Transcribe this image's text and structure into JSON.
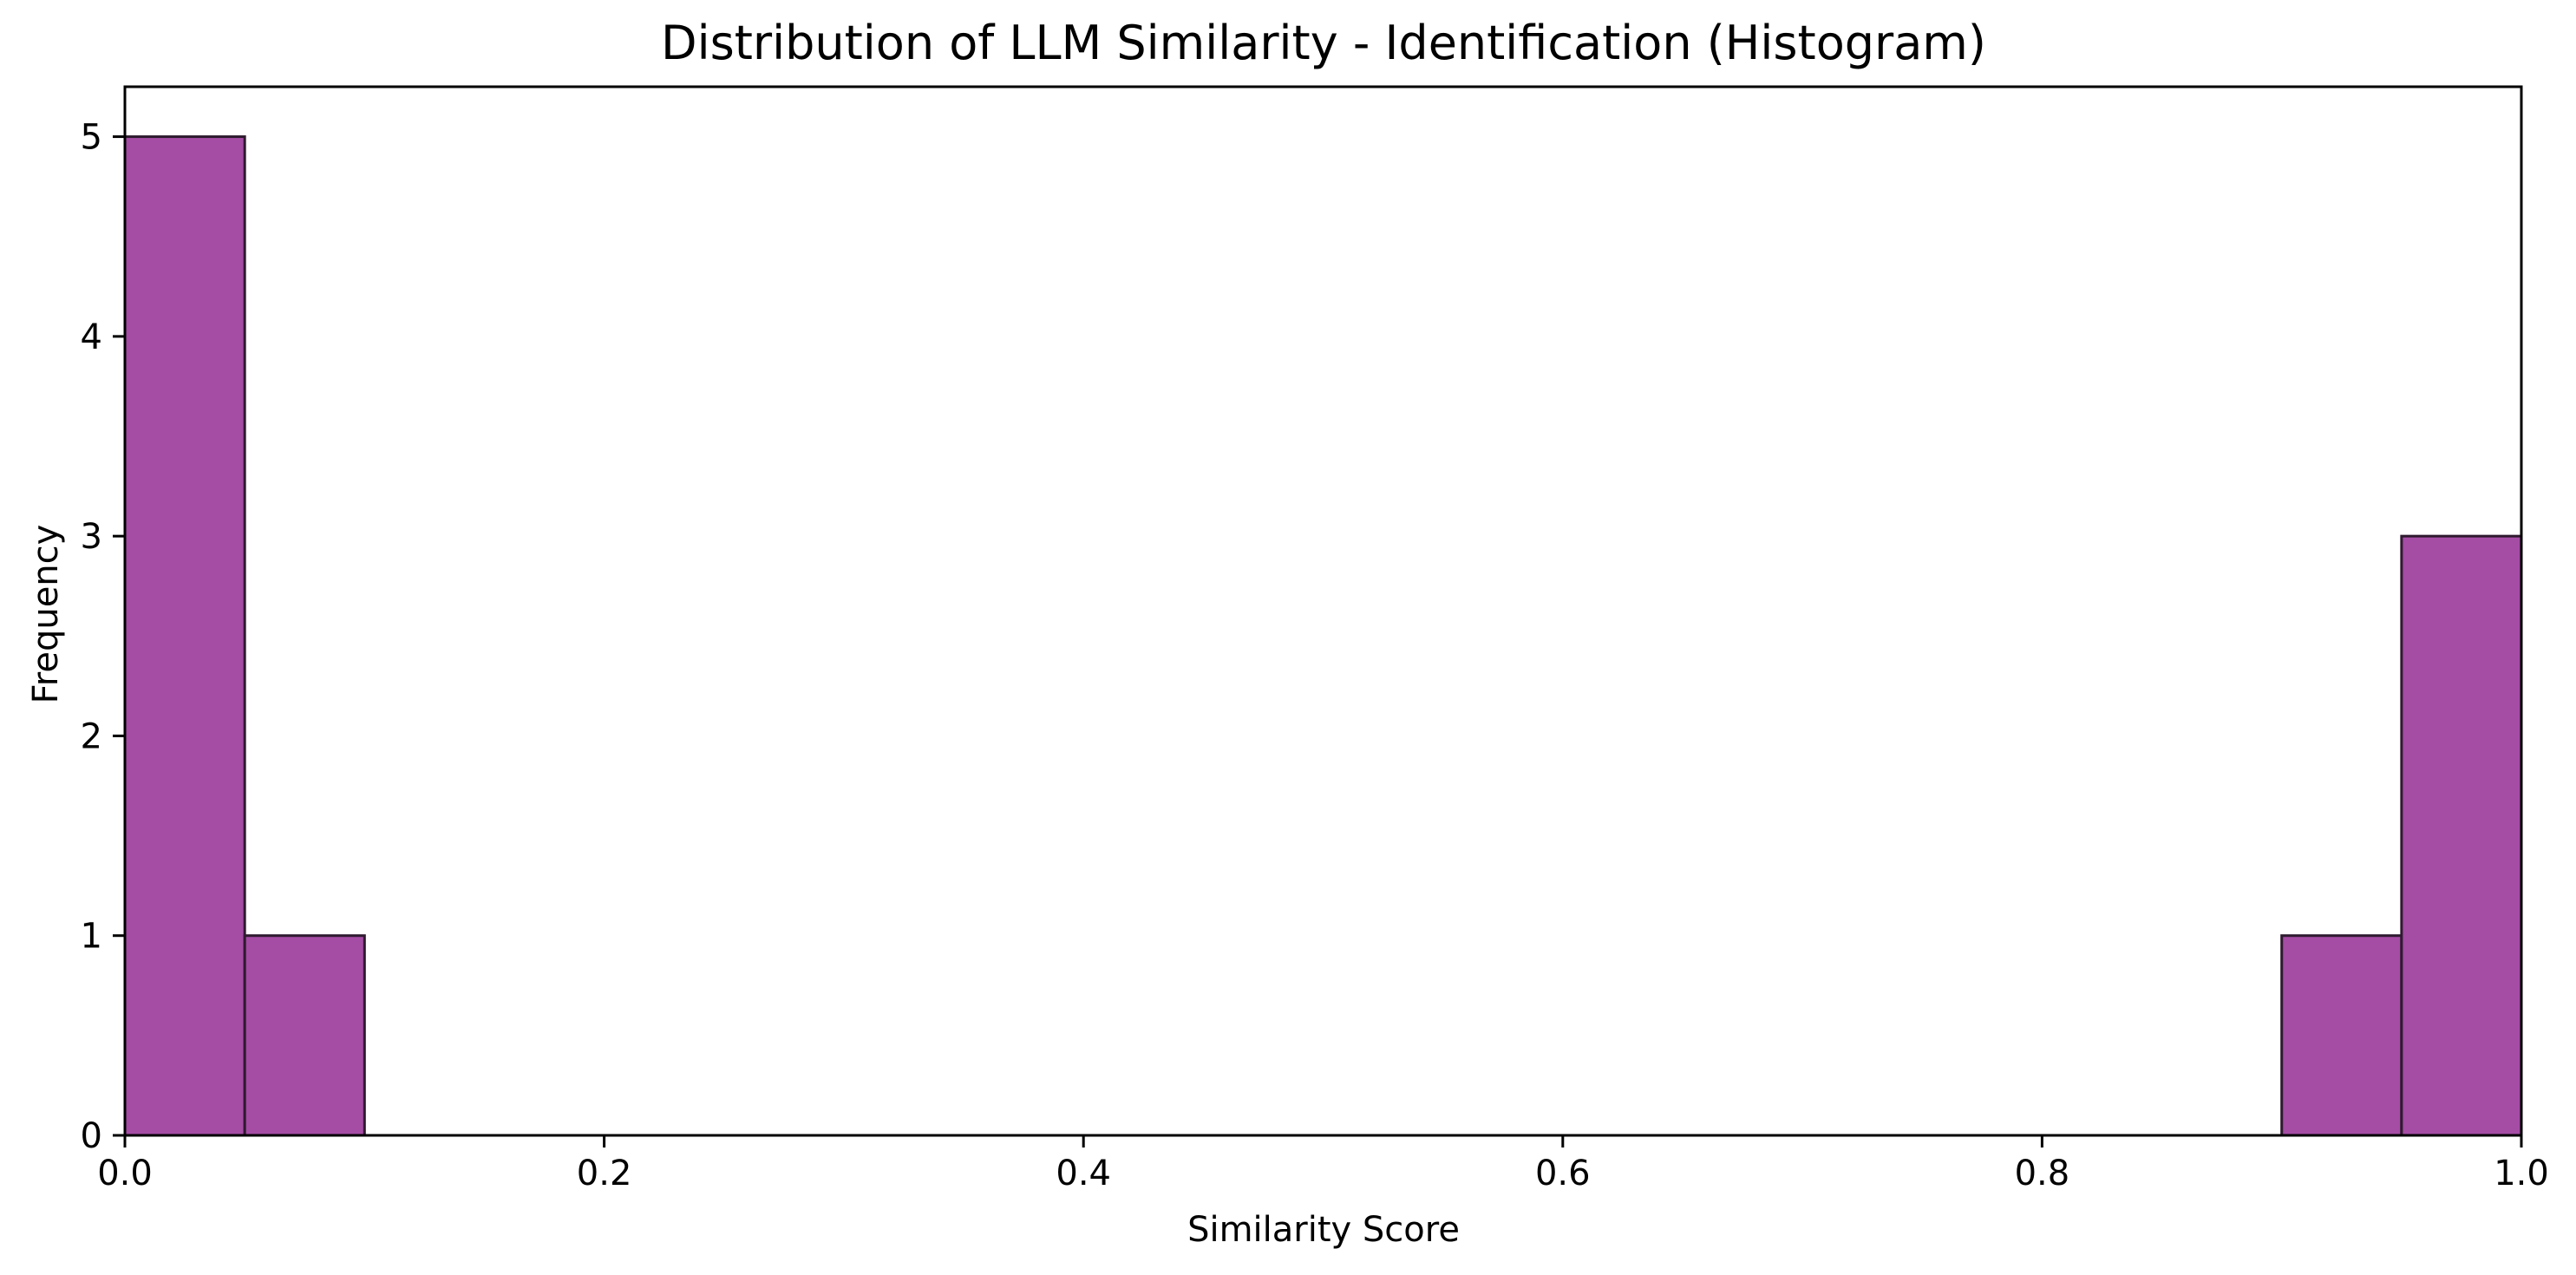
{
  "chart_data": {
    "type": "bar",
    "title": "Distribution of LLM Similarity - Identification (Histogram)",
    "xlabel": "Similarity Score",
    "ylabel": "Frequency",
    "xlim": [
      0,
      1
    ],
    "ylim": [
      0,
      5.25
    ],
    "xticks": [
      0.0,
      0.2,
      0.4,
      0.6,
      0.8,
      1.0
    ],
    "xtick_labels": [
      "0.0",
      "0.2",
      "0.4",
      "0.6",
      "0.8",
      "1.0"
    ],
    "yticks": [
      0,
      1,
      2,
      3,
      4,
      5
    ],
    "ytick_labels": [
      "0",
      "1",
      "2",
      "3",
      "4",
      "5"
    ],
    "grid": false,
    "bins": [
      {
        "x0": 0.0,
        "x1": 0.05,
        "count": 5
      },
      {
        "x0": 0.05,
        "x1": 0.1,
        "count": 1
      },
      {
        "x0": 0.9,
        "x1": 0.95,
        "count": 1
      },
      {
        "x0": 0.95,
        "x1": 1.0,
        "count": 3
      }
    ],
    "colors": {
      "bar_fill": "#a54ca5",
      "bar_edge": "#2e1a2e"
    }
  }
}
